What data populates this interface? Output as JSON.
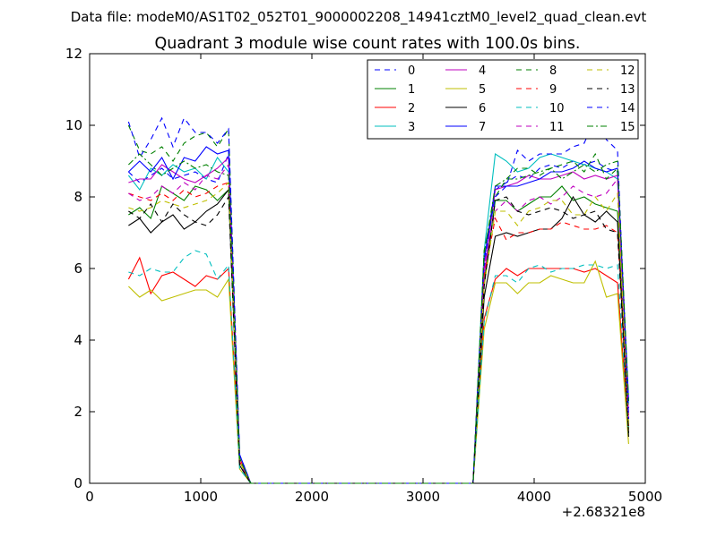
{
  "suptitle": "Data file: modeM0/AS1T02_052T01_9000002208_14941cztM0_level2_quad_clean.evt",
  "chart_data": {
    "type": "line",
    "title": "Quadrant 3 module wise count rates with 100.0s bins.",
    "xlabel": "",
    "ylabel": "",
    "x_offset_label": "+2.68321e8",
    "xlim": [
      0,
      5000
    ],
    "ylim": [
      0,
      12
    ],
    "xticks": [
      0,
      1000,
      2000,
      3000,
      4000,
      5000
    ],
    "yticks": [
      0,
      2,
      4,
      6,
      8,
      10,
      12
    ],
    "grid": false,
    "legend_position": "top-right",
    "legend_columns": 4,
    "x": [
      350,
      450,
      550,
      650,
      750,
      850,
      950,
      1050,
      1150,
      1250,
      1350,
      1450,
      1550,
      1650,
      1750,
      1850,
      1950,
      2050,
      2150,
      2250,
      2350,
      2450,
      2550,
      2650,
      2750,
      2850,
      2950,
      3050,
      3150,
      3250,
      3350,
      3450,
      3550,
      3650,
      3750,
      3850,
      3950,
      4050,
      4150,
      4250,
      4350,
      4450,
      4550,
      4650,
      4750,
      4850
    ],
    "series": [
      {
        "name": "0",
        "color": "#0000ff",
        "dash": "dashed",
        "values": [
          8.7,
          8.4,
          8.6,
          8.8,
          8.5,
          8.6,
          8.7,
          8.5,
          8.4,
          9.2,
          0.6,
          0,
          0,
          0,
          0,
          0,
          0,
          0,
          0,
          0,
          0,
          0,
          0,
          0,
          0,
          0,
          0,
          0,
          0,
          0,
          0,
          0,
          6.0,
          8.2,
          8.4,
          8.6,
          8.5,
          8.8,
          8.9,
          8.8,
          9.0,
          8.9,
          9.0,
          8.8,
          8.7,
          2.1
        ]
      },
      {
        "name": "1",
        "color": "#008000",
        "dash": "solid",
        "values": [
          7.5,
          7.7,
          7.4,
          8.3,
          8.1,
          7.9,
          8.3,
          8.2,
          7.9,
          8.2,
          0.6,
          0,
          0,
          0,
          0,
          0,
          0,
          0,
          0,
          0,
          0,
          0,
          0,
          0,
          0,
          0,
          0,
          0,
          0,
          0,
          0,
          0,
          5.6,
          7.9,
          7.9,
          7.6,
          7.8,
          8.0,
          8.0,
          8.3,
          7.9,
          8.0,
          7.8,
          7.7,
          7.6,
          1.5
        ]
      },
      {
        "name": "2",
        "color": "#ff0000",
        "dash": "solid",
        "values": [
          5.7,
          6.3,
          5.3,
          5.8,
          5.9,
          5.7,
          5.5,
          5.8,
          5.7,
          6.0,
          0.7,
          0,
          0,
          0,
          0,
          0,
          0,
          0,
          0,
          0,
          0,
          0,
          0,
          0,
          0,
          0,
          0,
          0,
          0,
          0,
          0,
          0,
          4.6,
          5.7,
          6.0,
          5.8,
          6.0,
          6.0,
          6.0,
          6.0,
          6.0,
          5.9,
          6.0,
          5.8,
          5.6,
          1.4
        ]
      },
      {
        "name": "3",
        "color": "#00bfbf",
        "dash": "solid",
        "values": [
          8.6,
          8.2,
          8.8,
          8.6,
          8.9,
          8.7,
          8.8,
          8.5,
          9.1,
          8.7,
          0.6,
          0,
          0,
          0,
          0,
          0,
          0,
          0,
          0,
          0,
          0,
          0,
          0,
          0,
          0,
          0,
          0,
          0,
          0,
          0,
          0,
          0,
          6.5,
          9.2,
          9.0,
          8.7,
          8.8,
          9.1,
          9.2,
          9.1,
          9.0,
          8.9,
          8.8,
          8.7,
          8.5,
          2.2
        ]
      },
      {
        "name": "4",
        "color": "#bf00bf",
        "dash": "solid",
        "values": [
          8.4,
          8.5,
          8.5,
          8.9,
          8.7,
          8.5,
          8.4,
          8.6,
          8.8,
          9.1,
          0.6,
          0,
          0,
          0,
          0,
          0,
          0,
          0,
          0,
          0,
          0,
          0,
          0,
          0,
          0,
          0,
          0,
          0,
          0,
          0,
          0,
          0,
          5.8,
          8.2,
          8.3,
          8.4,
          8.6,
          8.5,
          8.5,
          8.6,
          8.7,
          8.5,
          8.6,
          8.5,
          8.6,
          1.9
        ]
      },
      {
        "name": "5",
        "color": "#bfbf00",
        "dash": "solid",
        "values": [
          5.5,
          5.2,
          5.4,
          5.1,
          5.2,
          5.3,
          5.4,
          5.4,
          5.2,
          5.7,
          0.4,
          0,
          0,
          0,
          0,
          0,
          0,
          0,
          0,
          0,
          0,
          0,
          0,
          0,
          0,
          0,
          0,
          0,
          0,
          0,
          0,
          0,
          4.3,
          5.6,
          5.6,
          5.3,
          5.6,
          5.6,
          5.8,
          5.7,
          5.6,
          5.6,
          6.2,
          5.2,
          5.3,
          1.1
        ]
      },
      {
        "name": "6",
        "color": "#000000",
        "dash": "solid",
        "values": [
          7.2,
          7.4,
          7.0,
          7.3,
          7.5,
          7.1,
          7.3,
          7.6,
          7.8,
          8.2,
          0.5,
          0,
          0,
          0,
          0,
          0,
          0,
          0,
          0,
          0,
          0,
          0,
          0,
          0,
          0,
          0,
          0,
          0,
          0,
          0,
          0,
          0,
          5.2,
          6.9,
          7.0,
          6.9,
          7.0,
          7.1,
          7.1,
          7.4,
          8.0,
          7.5,
          7.3,
          7.6,
          7.3,
          1.3
        ]
      },
      {
        "name": "7",
        "color": "#0000ff",
        "dash": "solid",
        "values": [
          8.7,
          9.0,
          8.7,
          9.1,
          8.5,
          9.1,
          9.0,
          9.4,
          9.2,
          9.3,
          0.8,
          0,
          0,
          0,
          0,
          0,
          0,
          0,
          0,
          0,
          0,
          0,
          0,
          0,
          0,
          0,
          0,
          0,
          0,
          0,
          0,
          0,
          6.2,
          8.3,
          8.3,
          8.3,
          8.4,
          8.5,
          8.7,
          8.7,
          8.8,
          9.0,
          8.8,
          8.7,
          8.8,
          2.3
        ]
      },
      {
        "name": "8",
        "color": "#008000",
        "dash": "dashed",
        "values": [
          10.0,
          9.3,
          9.2,
          9.4,
          9.0,
          9.5,
          9.7,
          9.8,
          9.4,
          9.9,
          0.7,
          0,
          0,
          0,
          0,
          0,
          0,
          0,
          0,
          0,
          0,
          0,
          0,
          0,
          0,
          0,
          0,
          0,
          0,
          0,
          0,
          0,
          6.5,
          8.0,
          8.5,
          8.8,
          8.8,
          8.6,
          8.8,
          8.9,
          9.0,
          8.7,
          9.2,
          8.5,
          8.8,
          1.6
        ]
      },
      {
        "name": "9",
        "color": "#ff0000",
        "dash": "dashed",
        "values": [
          8.1,
          8.0,
          7.9,
          8.1,
          7.9,
          8.2,
          8.0,
          8.1,
          8.3,
          8.4,
          0.6,
          0,
          0,
          0,
          0,
          0,
          0,
          0,
          0,
          0,
          0,
          0,
          0,
          0,
          0,
          0,
          0,
          0,
          0,
          0,
          0,
          0,
          5.8,
          7.4,
          6.8,
          7.0,
          7.0,
          7.1,
          7.1,
          7.3,
          7.2,
          7.1,
          7.1,
          7.2,
          7.0,
          1.6
        ]
      },
      {
        "name": "10",
        "color": "#00bfbf",
        "dash": "dashed",
        "values": [
          5.9,
          5.8,
          6.0,
          5.9,
          5.9,
          6.3,
          6.5,
          6.4,
          5.7,
          6.1,
          0.4,
          0,
          0,
          0,
          0,
          0,
          0,
          0,
          0,
          0,
          0,
          0,
          0,
          0,
          0,
          0,
          0,
          0,
          0,
          0,
          0,
          0,
          4.5,
          5.8,
          5.8,
          5.6,
          6.0,
          6.1,
          5.9,
          6.0,
          6.0,
          6.1,
          6.1,
          6.0,
          6.1,
          1.4
        ]
      },
      {
        "name": "11",
        "color": "#bf00bf",
        "dash": "dashed",
        "values": [
          8.1,
          7.9,
          8.0,
          8.3,
          8.1,
          8.4,
          8.2,
          8.6,
          8.5,
          8.9,
          0.6,
          0,
          0,
          0,
          0,
          0,
          0,
          0,
          0,
          0,
          0,
          0,
          0,
          0,
          0,
          0,
          0,
          0,
          0,
          0,
          0,
          0,
          6.1,
          7.6,
          7.9,
          7.6,
          7.9,
          8.0,
          7.8,
          8.0,
          8.3,
          8.1,
          8.0,
          8.1,
          8.5,
          1.8
        ]
      },
      {
        "name": "12",
        "color": "#bfbf00",
        "dash": "dashed",
        "values": [
          7.7,
          7.6,
          7.7,
          7.9,
          7.8,
          7.7,
          7.8,
          7.9,
          8.1,
          8.4,
          0.6,
          0,
          0,
          0,
          0,
          0,
          0,
          0,
          0,
          0,
          0,
          0,
          0,
          0,
          0,
          0,
          0,
          0,
          0,
          0,
          0,
          0,
          5.5,
          7.6,
          7.6,
          7.2,
          7.6,
          7.7,
          7.9,
          7.9,
          7.5,
          7.5,
          8.0,
          7.6,
          8.1,
          1.6
        ]
      },
      {
        "name": "13",
        "color": "#000000",
        "dash": "dashed",
        "values": [
          7.6,
          7.4,
          7.8,
          7.3,
          7.8,
          7.5,
          7.3,
          7.2,
          7.5,
          8.0,
          0.5,
          0,
          0,
          0,
          0,
          0,
          0,
          0,
          0,
          0,
          0,
          0,
          0,
          0,
          0,
          0,
          0,
          0,
          0,
          0,
          0,
          0,
          5.5,
          7.9,
          8.0,
          7.6,
          7.5,
          7.6,
          7.7,
          7.6,
          7.4,
          7.5,
          7.6,
          7.1,
          7.0,
          1.4
        ]
      },
      {
        "name": "14",
        "color": "#0000ff",
        "dash": "dashed",
        "values": [
          10.1,
          9.1,
          9.6,
          10.2,
          9.4,
          10.2,
          9.8,
          9.8,
          9.5,
          9.9,
          0.8,
          0,
          0,
          0,
          0,
          0,
          0,
          0,
          0,
          0,
          0,
          0,
          0,
          0,
          0,
          0,
          0,
          0,
          0,
          0,
          0,
          0,
          6.3,
          8.0,
          8.3,
          9.3,
          9.0,
          9.2,
          9.2,
          9.2,
          9.4,
          9.5,
          10.2,
          9.6,
          9.3,
          1.8
        ]
      },
      {
        "name": "15",
        "color": "#008000",
        "dash": "dashdot",
        "values": [
          8.9,
          9.2,
          8.9,
          8.6,
          8.8,
          9.0,
          8.8,
          8.9,
          8.7,
          8.6,
          0.7,
          0,
          0,
          0,
          0,
          0,
          0,
          0,
          0,
          0,
          0,
          0,
          0,
          0,
          0,
          0,
          0,
          0,
          0,
          0,
          0,
          0,
          6.4,
          8.3,
          8.5,
          8.5,
          8.6,
          8.7,
          8.8,
          8.5,
          8.7,
          8.9,
          8.7,
          8.9,
          9.0,
          2.3
        ]
      }
    ]
  }
}
